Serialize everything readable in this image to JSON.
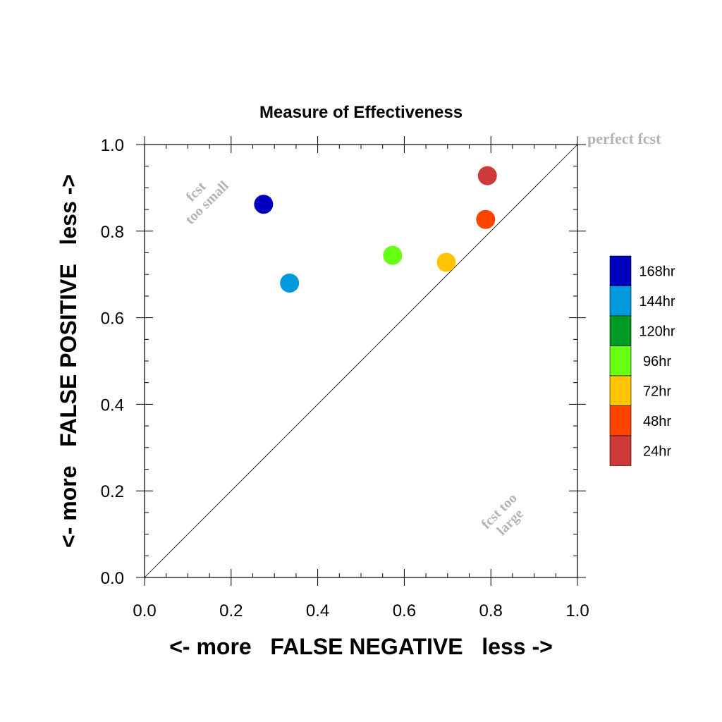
{
  "chart_data": {
    "type": "scatter",
    "title": "Measure of Effectiveness",
    "xlabel": "<- more   FALSE NEGATIVE   less ->",
    "ylabel": "<- more   FALSE POSITIVE   less ->",
    "xlim": [
      0.0,
      1.0
    ],
    "ylim": [
      0.0,
      1.0
    ],
    "xticks": [
      "0.0",
      "0.2",
      "0.4",
      "0.6",
      "0.8",
      "1.0"
    ],
    "yticks": [
      "0.0",
      "0.2",
      "0.4",
      "0.6",
      "0.8",
      "1.0"
    ],
    "grid": false,
    "diagonal_reference_line": true,
    "annotations": {
      "top_right": "perfect fcst",
      "upper_left_line1": "fcst",
      "upper_left_line2": "too small",
      "lower_right_line1": "fcst too",
      "lower_right_line2": "large"
    },
    "legend_position": "right",
    "legend": [
      {
        "label": "168hr",
        "color": "#0000c0"
      },
      {
        "label": "144hr",
        "color": "#0099dd"
      },
      {
        "label": "120hr",
        "color": "#009922"
      },
      {
        "label": "96hr",
        "color": "#66ff11"
      },
      {
        "label": "72hr",
        "color": "#ffc400"
      },
      {
        "label": "48hr",
        "color": "#ff4400"
      },
      {
        "label": "24hr",
        "color": "#cc3a3a"
      }
    ],
    "series": [
      {
        "name": "168hr",
        "color": "#0000c0",
        "x": 0.275,
        "y": 0.862
      },
      {
        "name": "144hr",
        "color": "#0099dd",
        "x": 0.335,
        "y": 0.68
      },
      {
        "name": "96hr",
        "color": "#66ff11",
        "x": 0.573,
        "y": 0.744
      },
      {
        "name": "72hr",
        "color": "#ffc400",
        "x": 0.697,
        "y": 0.728
      },
      {
        "name": "48hr",
        "color": "#ff4400",
        "x": 0.788,
        "y": 0.827
      },
      {
        "name": "24hr",
        "color": "#cc3a3a",
        "x": 0.792,
        "y": 0.928
      }
    ]
  }
}
